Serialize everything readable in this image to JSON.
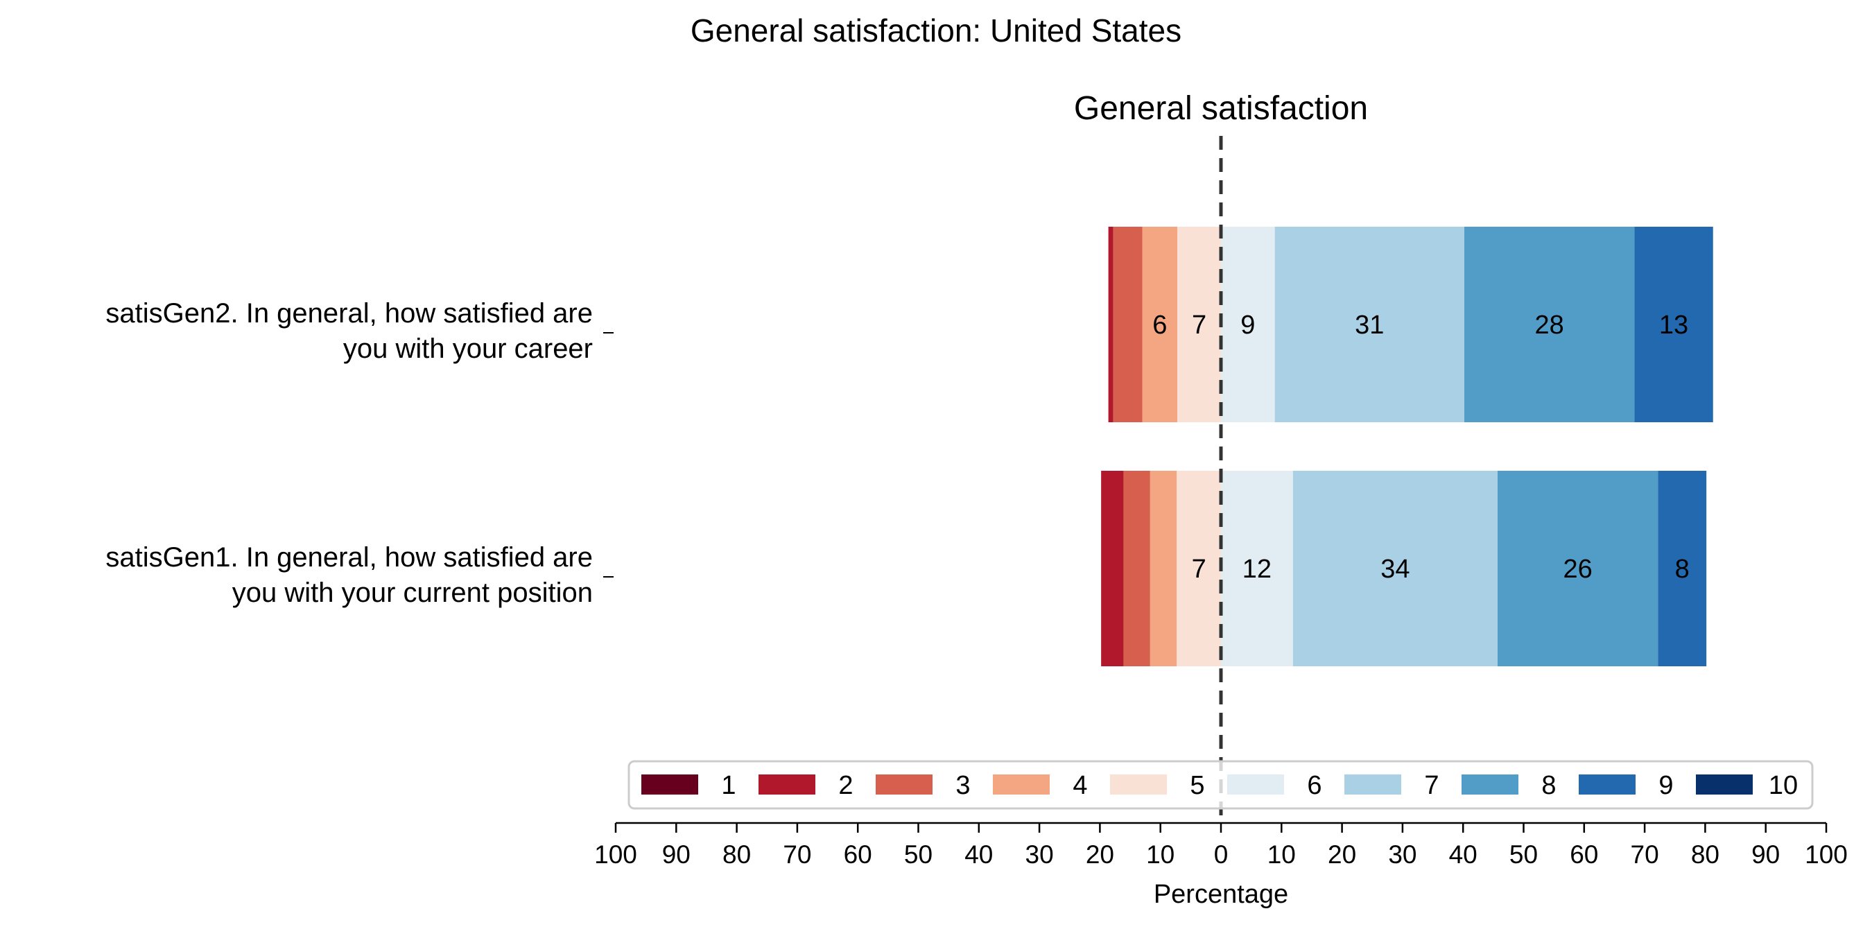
{
  "chart_data": {
    "type": "bar",
    "orientation": "horizontal-diverging",
    "title": "General satisfaction: United States",
    "subtitle": "General satisfaction",
    "xlabel": "Percentage",
    "xlim": [
      -100,
      100
    ],
    "xticks": [
      -100,
      -90,
      -80,
      -70,
      -60,
      -50,
      -40,
      -30,
      -20,
      -10,
      0,
      10,
      20,
      30,
      40,
      50,
      60,
      70,
      80,
      90,
      100
    ],
    "xtick_labels": [
      "100",
      "90",
      "80",
      "70",
      "60",
      "50",
      "40",
      "30",
      "20",
      "10",
      "0",
      "10",
      "20",
      "30",
      "40",
      "50",
      "60",
      "70",
      "80",
      "90",
      "100"
    ],
    "center_line": "dashed at 0",
    "categories": [
      {
        "label_line1": "satisGen2. In general, how satisfied are",
        "label_line2": "you with your career",
        "values": [
          0,
          0.8,
          4.8,
          5.8,
          7.2,
          8.9,
          31.3,
          28.1,
          13.0,
          0
        ],
        "shown_labels": [
          "",
          "",
          "",
          "6",
          "7",
          "9",
          "31",
          "28",
          "13",
          ""
        ]
      },
      {
        "label_line1": "satisGen1. In general, how satisfied are",
        "label_line2": "you with your current position",
        "values": [
          0,
          3.7,
          4.4,
          4.4,
          7.3,
          11.9,
          33.8,
          26.5,
          8.0,
          0
        ],
        "shown_labels": [
          "",
          "",
          "",
          "",
          "7",
          "12",
          "34",
          "26",
          "8",
          ""
        ]
      }
    ],
    "series": [
      {
        "name": "1",
        "color": "#67001f"
      },
      {
        "name": "2",
        "color": "#b2182b"
      },
      {
        "name": "3",
        "color": "#d6604d"
      },
      {
        "name": "4",
        "color": "#f4a582"
      },
      {
        "name": "5",
        "color": "#f9e1d6"
      },
      {
        "name": "6",
        "color": "#e1ecf3"
      },
      {
        "name": "7",
        "color": "#a9d0e4"
      },
      {
        "name": "8",
        "color": "#529dc8"
      },
      {
        "name": "9",
        "color": "#2369b0"
      },
      {
        "name": "10",
        "color": "#08306b"
      }
    ],
    "legend": "bottom-center, inside axes",
    "grid": false
  }
}
